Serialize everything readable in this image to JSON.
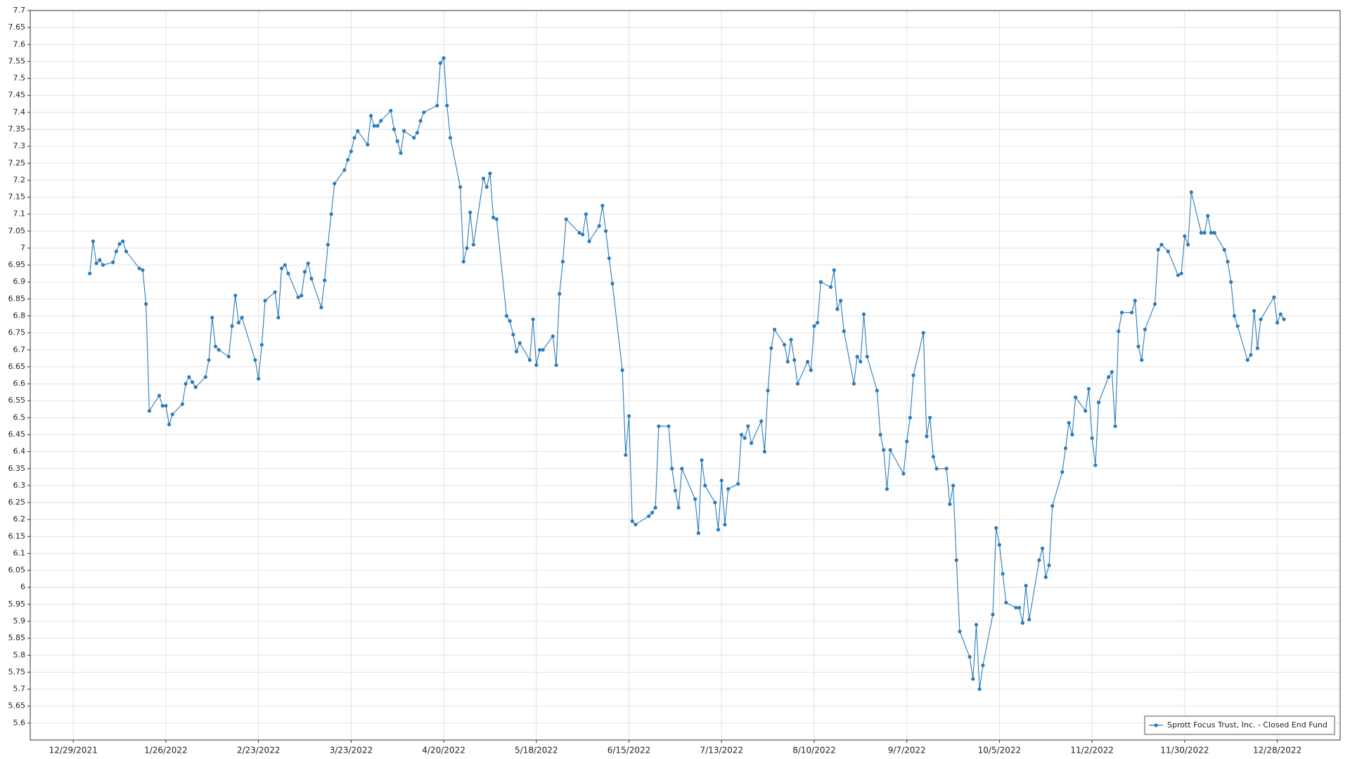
{
  "chart_data": {
    "type": "line",
    "xlim": [
      "2021-12-16",
      "2023-01-16"
    ],
    "xticks": [
      {
        "value": "2021-12-29",
        "label": "12/29/2021"
      },
      {
        "value": "2022-01-26",
        "label": "1/26/2022"
      },
      {
        "value": "2022-02-23",
        "label": "2/23/2022"
      },
      {
        "value": "2022-03-23",
        "label": "3/23/2022"
      },
      {
        "value": "2022-04-20",
        "label": "4/20/2022"
      },
      {
        "value": "2022-05-18",
        "label": "5/18/2022"
      },
      {
        "value": "2022-06-15",
        "label": "6/15/2022"
      },
      {
        "value": "2022-07-13",
        "label": "7/13/2022"
      },
      {
        "value": "2022-08-10",
        "label": "8/10/2022"
      },
      {
        "value": "2022-09-07",
        "label": "9/7/2022"
      },
      {
        "value": "2022-10-05",
        "label": "10/5/2022"
      },
      {
        "value": "2022-11-02",
        "label": "11/2/2022"
      },
      {
        "value": "2022-11-30",
        "label": "11/30/2022"
      },
      {
        "value": "2022-12-28",
        "label": "12/28/2022"
      }
    ],
    "ylim": [
      5.55,
      7.7
    ],
    "yticks": [
      5.6,
      5.65,
      5.7,
      5.75,
      5.8,
      5.85,
      5.9,
      5.95,
      6,
      6.05,
      6.1,
      6.15,
      6.2,
      6.25,
      6.3,
      6.35,
      6.4,
      6.45,
      6.5,
      6.55,
      6.6,
      6.65,
      6.7,
      6.75,
      6.8,
      6.85,
      6.9,
      6.95,
      7,
      7.05,
      7.1,
      7.15,
      7.2,
      7.25,
      7.3,
      7.35,
      7.4,
      7.45,
      7.5,
      7.55,
      7.6,
      7.65,
      7.7
    ],
    "grid": true,
    "legend": "lower right",
    "x": [
      "2022-01-03",
      "2022-01-04",
      "2022-01-05",
      "2022-01-06",
      "2022-01-07",
      "2022-01-10",
      "2022-01-11",
      "2022-01-12",
      "2022-01-13",
      "2022-01-14",
      "2022-01-18",
      "2022-01-19",
      "2022-01-20",
      "2022-01-21",
      "2022-01-24",
      "2022-01-25",
      "2022-01-26",
      "2022-01-27",
      "2022-01-28",
      "2022-01-31",
      "2022-02-01",
      "2022-02-02",
      "2022-02-03",
      "2022-02-04",
      "2022-02-07",
      "2022-02-08",
      "2022-02-09",
      "2022-02-10",
      "2022-02-11",
      "2022-02-14",
      "2022-02-15",
      "2022-02-16",
      "2022-02-17",
      "2022-02-18",
      "2022-02-22",
      "2022-02-23",
      "2022-02-24",
      "2022-02-25",
      "2022-02-28",
      "2022-03-01",
      "2022-03-02",
      "2022-03-03",
      "2022-03-04",
      "2022-03-07",
      "2022-03-08",
      "2022-03-09",
      "2022-03-10",
      "2022-03-11",
      "2022-03-14",
      "2022-03-15",
      "2022-03-16",
      "2022-03-17",
      "2022-03-18",
      "2022-03-21",
      "2022-03-22",
      "2022-03-23",
      "2022-03-24",
      "2022-03-25",
      "2022-03-28",
      "2022-03-29",
      "2022-03-30",
      "2022-03-31",
      "2022-04-01",
      "2022-04-04",
      "2022-04-05",
      "2022-04-06",
      "2022-04-07",
      "2022-04-08",
      "2022-04-11",
      "2022-04-12",
      "2022-04-13",
      "2022-04-14",
      "2022-04-18",
      "2022-04-19",
      "2022-04-20",
      "2022-04-21",
      "2022-04-22",
      "2022-04-25",
      "2022-04-26",
      "2022-04-27",
      "2022-04-28",
      "2022-04-29",
      "2022-05-02",
      "2022-05-03",
      "2022-05-04",
      "2022-05-05",
      "2022-05-06",
      "2022-05-09",
      "2022-05-10",
      "2022-05-11",
      "2022-05-12",
      "2022-05-13",
      "2022-05-16",
      "2022-05-17",
      "2022-05-18",
      "2022-05-19",
      "2022-05-20",
      "2022-05-23",
      "2022-05-24",
      "2022-05-25",
      "2022-05-26",
      "2022-05-27",
      "2022-05-31",
      "2022-06-01",
      "2022-06-02",
      "2022-06-03",
      "2022-06-06",
      "2022-06-07",
      "2022-06-08",
      "2022-06-09",
      "2022-06-10",
      "2022-06-13",
      "2022-06-14",
      "2022-06-15",
      "2022-06-16",
      "2022-06-17",
      "2022-06-21",
      "2022-06-22",
      "2022-06-23",
      "2022-06-24",
      "2022-06-27",
      "2022-06-28",
      "2022-06-29",
      "2022-06-30",
      "2022-07-01",
      "2022-07-05",
      "2022-07-06",
      "2022-07-07",
      "2022-07-08",
      "2022-07-11",
      "2022-07-12",
      "2022-07-13",
      "2022-07-14",
      "2022-07-15",
      "2022-07-18",
      "2022-07-19",
      "2022-07-20",
      "2022-07-21",
      "2022-07-22",
      "2022-07-25",
      "2022-07-26",
      "2022-07-27",
      "2022-07-28",
      "2022-07-29",
      "2022-08-01",
      "2022-08-02",
      "2022-08-03",
      "2022-08-04",
      "2022-08-05",
      "2022-08-08",
      "2022-08-09",
      "2022-08-10",
      "2022-08-11",
      "2022-08-12",
      "2022-08-15",
      "2022-08-16",
      "2022-08-17",
      "2022-08-18",
      "2022-08-19",
      "2022-08-22",
      "2022-08-23",
      "2022-08-24",
      "2022-08-25",
      "2022-08-26",
      "2022-08-29",
      "2022-08-30",
      "2022-08-31",
      "2022-09-01",
      "2022-09-02",
      "2022-09-06",
      "2022-09-07",
      "2022-09-08",
      "2022-09-09",
      "2022-09-12",
      "2022-09-13",
      "2022-09-14",
      "2022-09-15",
      "2022-09-16",
      "2022-09-19",
      "2022-09-20",
      "2022-09-21",
      "2022-09-22",
      "2022-09-23",
      "2022-09-26",
      "2022-09-27",
      "2022-09-28",
      "2022-09-29",
      "2022-09-30",
      "2022-10-03",
      "2022-10-04",
      "2022-10-05",
      "2022-10-06",
      "2022-10-07",
      "2022-10-10",
      "2022-10-11",
      "2022-10-12",
      "2022-10-13",
      "2022-10-14",
      "2022-10-17",
      "2022-10-18",
      "2022-10-19",
      "2022-10-20",
      "2022-10-21",
      "2022-10-24",
      "2022-10-25",
      "2022-10-26",
      "2022-10-27",
      "2022-10-28",
      "2022-10-31",
      "2022-11-01",
      "2022-11-02",
      "2022-11-03",
      "2022-11-04",
      "2022-11-07",
      "2022-11-08",
      "2022-11-09",
      "2022-11-10",
      "2022-11-11",
      "2022-11-14",
      "2022-11-15",
      "2022-11-16",
      "2022-11-17",
      "2022-11-18",
      "2022-11-21",
      "2022-11-22",
      "2022-11-23",
      "2022-11-25",
      "2022-11-28",
      "2022-11-29",
      "2022-11-30",
      "2022-12-01",
      "2022-12-02",
      "2022-12-05",
      "2022-12-06",
      "2022-12-07",
      "2022-12-08",
      "2022-12-09",
      "2022-12-12",
      "2022-12-13",
      "2022-12-14",
      "2022-12-15",
      "2022-12-16",
      "2022-12-19",
      "2022-12-20",
      "2022-12-21",
      "2022-12-22",
      "2022-12-23",
      "2022-12-27",
      "2022-12-28",
      "2022-12-29",
      "2022-12-30"
    ],
    "series": [
      {
        "name": "Sprott Focus Trust, Inc. - Closed End Fund",
        "color": "#2b7bb9",
        "values": [
          6.925,
          7.02,
          6.955,
          6.965,
          6.95,
          6.958,
          6.99,
          7.012,
          7.02,
          6.99,
          6.94,
          6.935,
          6.835,
          6.52,
          6.565,
          6.535,
          6.535,
          6.48,
          6.51,
          6.54,
          6.6,
          6.62,
          6.605,
          6.59,
          6.62,
          6.67,
          6.795,
          6.71,
          6.7,
          6.68,
          6.77,
          6.86,
          6.78,
          6.795,
          6.67,
          6.615,
          6.715,
          6.845,
          6.87,
          6.795,
          6.94,
          6.95,
          6.925,
          6.855,
          6.86,
          6.93,
          6.955,
          6.91,
          6.825,
          6.905,
          7.01,
          7.1,
          7.19,
          7.23,
          7.26,
          7.285,
          7.325,
          7.345,
          7.305,
          7.39,
          7.36,
          7.36,
          7.375,
          7.405,
          7.35,
          7.315,
          7.28,
          7.345,
          7.325,
          7.34,
          7.375,
          7.4,
          7.42,
          7.545,
          7.56,
          7.42,
          7.325,
          7.18,
          6.96,
          7.0,
          7.105,
          7.01,
          7.205,
          7.18,
          7.22,
          7.09,
          7.085,
          6.8,
          6.785,
          6.745,
          6.695,
          6.72,
          6.67,
          6.79,
          6.655,
          6.7,
          6.7,
          6.74,
          6.655,
          6.865,
          6.96,
          7.085,
          7.045,
          7.04,
          7.1,
          7.02,
          7.065,
          7.125,
          7.05,
          6.97,
          6.895,
          6.64,
          6.39,
          6.505,
          6.195,
          6.185,
          6.21,
          6.22,
          6.235,
          6.475,
          6.475,
          6.35,
          6.285,
          6.235,
          6.35,
          6.26,
          6.16,
          6.375,
          6.3,
          6.25,
          6.17,
          6.315,
          6.185,
          6.29,
          6.305,
          6.45,
          6.44,
          6.475,
          6.425,
          6.49,
          6.4,
          6.58,
          6.705,
          6.76,
          6.715,
          6.665,
          6.73,
          6.67,
          6.6,
          6.665,
          6.64,
          6.77,
          6.78,
          6.9,
          6.885,
          6.935,
          6.82,
          6.845,
          6.755,
          6.6,
          6.68,
          6.665,
          6.805,
          6.68,
          6.58,
          6.45,
          6.405,
          6.29,
          6.405,
          6.335,
          6.43,
          6.5,
          6.625,
          6.75,
          6.445,
          6.5,
          6.385,
          6.35,
          6.35,
          6.245,
          6.3,
          6.08,
          5.87,
          5.795,
          5.73,
          5.89,
          5.7,
          5.77,
          5.92,
          6.175,
          6.125,
          6.04,
          5.955,
          5.94,
          5.94,
          5.895,
          6.005,
          5.905,
          6.08,
          6.115,
          6.03,
          6.065,
          6.24,
          6.34,
          6.41,
          6.485,
          6.45,
          6.56,
          6.52,
          6.585,
          6.44,
          6.36,
          6.545,
          6.62,
          6.635,
          6.475,
          6.755,
          6.81,
          6.81,
          6.845,
          6.71,
          6.67,
          6.76,
          6.835,
          6.995,
          7.01,
          6.99,
          6.92,
          6.925,
          7.035,
          7.01,
          7.165,
          7.045,
          7.045,
          7.095,
          7.045,
          7.045,
          6.995,
          6.96,
          6.9,
          6.8,
          6.77,
          6.67,
          6.685,
          6.815,
          6.705,
          6.79,
          6.855,
          6.78,
          6.805,
          6.79
        ]
      }
    ]
  }
}
